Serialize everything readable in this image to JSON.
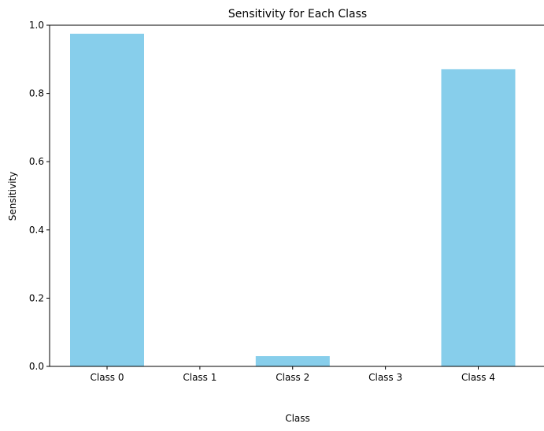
{
  "chart_data": {
    "type": "bar",
    "title": "Sensitivity for Each Class",
    "xlabel": "Class",
    "ylabel": "Sensitivity",
    "categories": [
      "Class 0",
      "Class 1",
      "Class 2",
      "Class 3",
      "Class 4"
    ],
    "values": [
      0.975,
      0.0,
      0.03,
      0.0,
      0.871
    ],
    "ylim": [
      0,
      1.0
    ],
    "yticks": [
      0.0,
      0.2,
      0.4,
      0.6,
      0.8,
      1.0
    ],
    "ytick_labels": [
      "0.0",
      "0.2",
      "0.4",
      "0.6",
      "0.8",
      "1.0"
    ],
    "bar_color": "#87ceeb",
    "grid": false,
    "legend": "none"
  }
}
